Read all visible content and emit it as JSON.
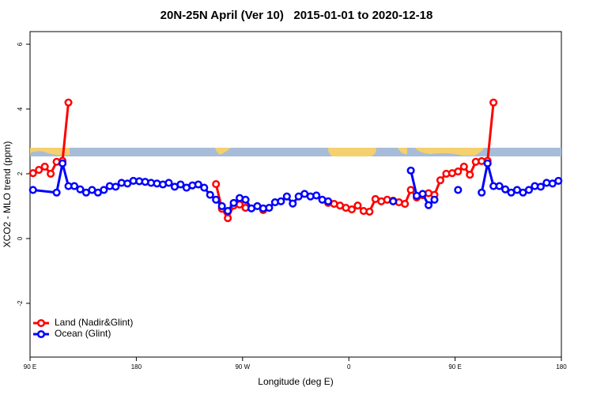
{
  "chart_data": {
    "type": "line",
    "title": "20N-25N April (Ver 10)   2015-01-01 to 2020-12-18",
    "x_label": "Longitude (deg E)",
    "y_label": "XCO2 - MLO trend (ppm)",
    "xlim": [
      90,
      540
    ],
    "ylim": [
      -3.66,
      6.39
    ],
    "xticks": [
      {
        "value": 90,
        "label": "90 E"
      },
      180,
      {
        "value": 270,
        "label": "90 W"
      },
      {
        "value": 360,
        "label": "0"
      },
      {
        "value": 450,
        "label": "90 E"
      },
      {
        "value": 540,
        "label": "180"
      }
    ],
    "yticks": [
      -2,
      0,
      2,
      4,
      6
    ],
    "legend": "bottomleft",
    "series": [
      {
        "name": "Land (Nadir&Glint)",
        "color": "#ff0000",
        "x": [
          92.5,
          97.5,
          102.5,
          107.5,
          112.5,
          117.5,
          122.5,
          127.5,
          247.5,
          252.5,
          257.5,
          262.5,
          267.5,
          272.5,
          277.5,
          287.5,
          292.5,
          342.5,
          347.5,
          352.5,
          357.5,
          362.5,
          367.5,
          372.5,
          377.5,
          382.5,
          387.5,
          392.5,
          397.5,
          402.5,
          407.5,
          412.5,
          417.5,
          422.5,
          427.5,
          432.5,
          437.5,
          442.5,
          447.5,
          452.5,
          457.5,
          462.5,
          467.5,
          472.5,
          477.5,
          482.5
        ],
        "values": [
          2.02,
          2.12,
          2.22,
          2.0,
          2.37,
          2.4,
          4.2,
          null,
          1.68,
          0.92,
          0.63,
          1.02,
          1.05,
          0.95,
          null,
          0.88,
          null,
          1.1,
          1.07,
          1.02,
          0.95,
          0.9,
          1.02,
          0.85,
          0.83,
          1.22,
          1.15,
          1.2,
          1.17,
          1.12,
          1.07,
          1.5,
          1.27,
          1.34,
          1.4,
          1.35,
          1.8,
          2.0,
          2.02,
          2.07,
          2.22,
          1.97,
          2.37,
          2.39,
          2.4,
          4.2
        ]
      },
      {
        "name": "Ocean (Glint)",
        "color": "#0000ff",
        "x": [
          92.5,
          112.5,
          117.5,
          122.5,
          127.5,
          132.5,
          137.5,
          142.5,
          147.5,
          152.5,
          157.5,
          162.5,
          167.5,
          172.5,
          177.5,
          182.5,
          187.5,
          192.5,
          197.5,
          202.5,
          207.5,
          212.5,
          217.5,
          222.5,
          227.5,
          232.5,
          237.5,
          242.5,
          247.5,
          252.5,
          257.5,
          262.5,
          267.5,
          272.5,
          277.5,
          282.5,
          287.5,
          292.5,
          297.5,
          302.5,
          307.5,
          312.5,
          317.5,
          322.5,
          327.5,
          332.5,
          337.5,
          342.5,
          347.5,
          397.5,
          402.5,
          412.5,
          417.5,
          422.5,
          427.5,
          432.5,
          437.5,
          452.5,
          457.5,
          472.5,
          477.5,
          482.5,
          487.5,
          492.5,
          497.5,
          502.5,
          507.5,
          512.5,
          517.5,
          522.5,
          527.5,
          532.5,
          537.5
        ],
        "values": [
          1.5,
          1.42,
          2.32,
          1.62,
          1.62,
          1.52,
          1.42,
          1.5,
          1.42,
          1.5,
          1.62,
          1.6,
          1.72,
          1.7,
          1.78,
          1.77,
          1.75,
          1.72,
          1.7,
          1.67,
          1.72,
          1.6,
          1.67,
          1.57,
          1.64,
          1.67,
          1.57,
          1.35,
          1.2,
          1.0,
          0.85,
          1.1,
          1.25,
          1.2,
          0.93,
          1.0,
          0.93,
          0.95,
          1.12,
          1.15,
          1.3,
          1.08,
          1.3,
          1.38,
          1.3,
          1.33,
          1.2,
          1.15,
          null,
          1.15,
          null,
          2.1,
          1.32,
          1.38,
          1.03,
          1.2,
          null,
          1.5,
          null,
          1.42,
          2.32,
          1.62,
          1.62,
          1.52,
          1.42,
          1.5,
          1.42,
          1.5,
          1.62,
          1.6,
          1.72,
          1.7,
          1.78
        ]
      }
    ]
  }
}
